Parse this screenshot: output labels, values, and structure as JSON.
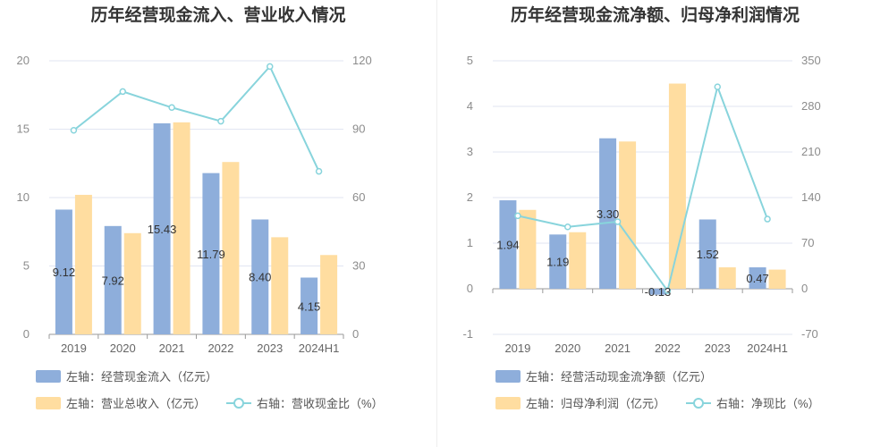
{
  "colors": {
    "bar1": "#8eaedb",
    "bar2": "#ffdda0",
    "line": "#88d4dc",
    "grid": "#e1e5f2",
    "axis": "#9a9a9a"
  },
  "chart_data": [
    {
      "type": "bar",
      "title": "历年经营现金流入、营业收入情况",
      "categories": [
        "2019",
        "2020",
        "2021",
        "2022",
        "2023",
        "2024H1"
      ],
      "left_axis": {
        "range": [
          0,
          20
        ],
        "ticks": [
          "0",
          "5",
          "10",
          "15",
          "20"
        ]
      },
      "right_axis": {
        "range": [
          0,
          120
        ],
        "ticks": [
          "0",
          "30",
          "60",
          "90",
          "120"
        ]
      },
      "series": [
        {
          "name": "左轴：经营现金流入（亿元）",
          "kind": "bar",
          "axis": "left",
          "values": [
            9.12,
            7.92,
            15.43,
            11.79,
            8.4,
            4.15
          ],
          "labels": [
            "9.12",
            "7.92",
            "15.43",
            "11.79",
            "8.40",
            "4.15"
          ]
        },
        {
          "name": "左轴：营业总收入（亿元）",
          "kind": "bar",
          "axis": "left",
          "values": [
            10.2,
            7.4,
            15.5,
            12.6,
            7.1,
            5.8
          ]
        },
        {
          "name": "右轴：营收现金比（%）",
          "kind": "line",
          "axis": "right",
          "values": [
            89.5,
            106.5,
            99.5,
            93.5,
            117.5,
            71.5
          ]
        }
      ]
    },
    {
      "type": "bar",
      "title": "历年经营现金流净额、归母净利润情况",
      "categories": [
        "2019",
        "2020",
        "2021",
        "2022",
        "2023",
        "2024H1"
      ],
      "left_axis": {
        "range": [
          -1,
          5
        ],
        "ticks": [
          "-1",
          "0",
          "1",
          "2",
          "3",
          "4",
          "5"
        ]
      },
      "right_axis": {
        "range": [
          -70,
          350
        ],
        "ticks": [
          "-70",
          "0",
          "70",
          "140",
          "210",
          "280",
          "350"
        ]
      },
      "series": [
        {
          "name": "左轴：经营活动现金流净额（亿元）",
          "kind": "bar",
          "axis": "left",
          "values": [
            1.94,
            1.19,
            3.3,
            -0.13,
            1.52,
            0.47
          ],
          "labels": [
            "1.94",
            "1.19",
            "3.30",
            "-0.13",
            "1.52",
            "0.47"
          ]
        },
        {
          "name": "左轴：归母净利润（亿元）",
          "kind": "bar",
          "axis": "left",
          "values": [
            1.73,
            1.24,
            3.23,
            4.5,
            0.47,
            0.42
          ]
        },
        {
          "name": "右轴：净现比（%）",
          "kind": "line",
          "axis": "right",
          "values": [
            112,
            95,
            103,
            -3,
            310,
            107
          ]
        }
      ]
    }
  ]
}
